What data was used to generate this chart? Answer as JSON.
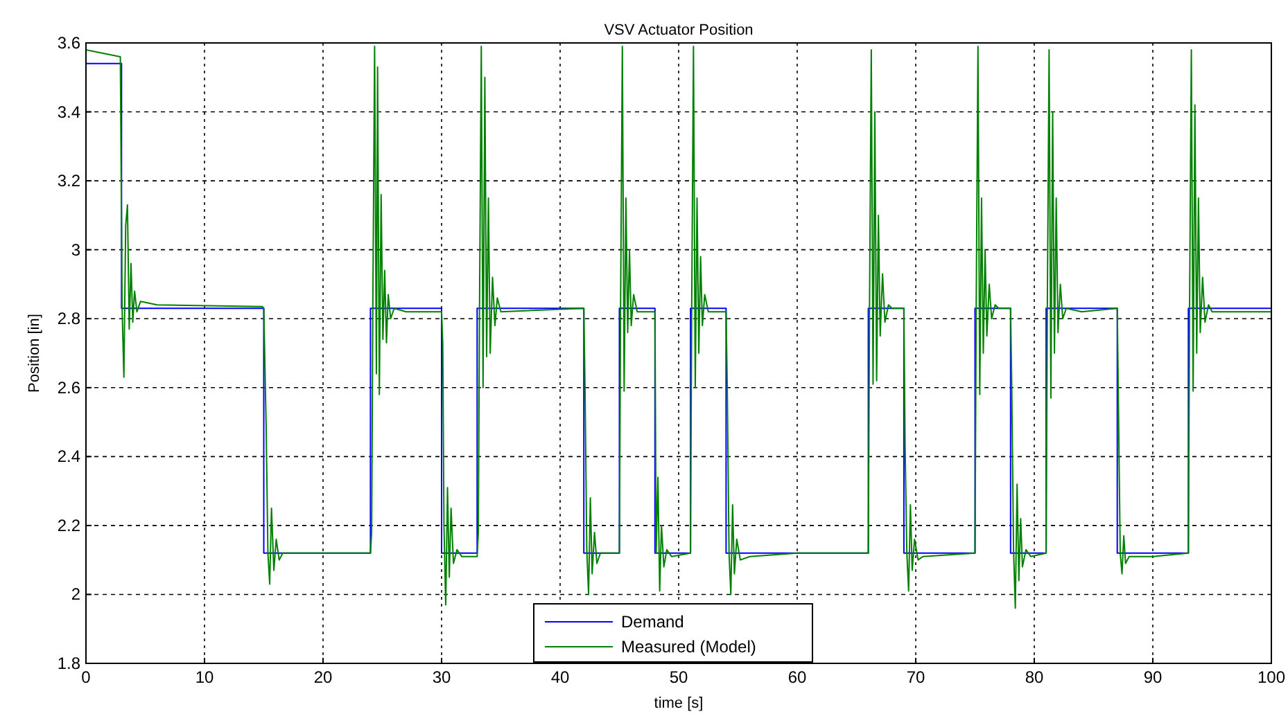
{
  "chart_data": {
    "type": "line",
    "title": "VSV Actuator Position",
    "xlabel": "time [s]",
    "ylabel": "Position [in]",
    "xlim": [
      0,
      100
    ],
    "xticks": [
      0,
      10,
      20,
      30,
      40,
      50,
      60,
      70,
      80,
      90,
      100
    ],
    "ylim": [
      1.8,
      3.6
    ],
    "yticks": [
      1.8,
      2,
      2.2,
      2.4,
      2.6,
      2.8,
      3,
      3.2,
      3.4,
      3.6
    ],
    "grid": true,
    "legend": "bottom",
    "line_style": "solid",
    "marker": "none",
    "series": [
      {
        "name": "Demand",
        "type": "step",
        "color": "#0000ff",
        "x": [
          0,
          3,
          15,
          24,
          30,
          33,
          42,
          45,
          48,
          51,
          54,
          66,
          69,
          75,
          78,
          81,
          87,
          93,
          100
        ],
        "values": [
          3.54,
          2.83,
          2.12,
          2.83,
          2.12,
          2.83,
          2.12,
          2.83,
          2.12,
          2.83,
          2.12,
          2.83,
          2.12,
          2.83,
          2.12,
          2.83,
          2.12,
          2.83,
          2.83
        ]
      },
      {
        "name": "Measured (Model)",
        "type": "line",
        "color": "#008000",
        "x": [
          0,
          2.9,
          3.05,
          3.2,
          3.35,
          3.5,
          3.65,
          3.8,
          3.95,
          4.1,
          4.3,
          4.6,
          6,
          14.9,
          15.0,
          15.2,
          15.35,
          15.5,
          15.65,
          15.85,
          16.05,
          16.3,
          16.6,
          24,
          24.1,
          24.2,
          24.35,
          24.5,
          24.6,
          24.75,
          24.9,
          25.05,
          25.2,
          25.35,
          25.5,
          25.7,
          26,
          27,
          30,
          30.1,
          30.2,
          30.35,
          30.5,
          30.65,
          30.8,
          31,
          31.3,
          31.7,
          33,
          33.1,
          33.2,
          33.35,
          33.5,
          33.65,
          33.8,
          33.95,
          34.1,
          34.3,
          34.5,
          34.7,
          35,
          42,
          42.1,
          42.25,
          42.4,
          42.55,
          42.7,
          42.9,
          43.1,
          43.4,
          45,
          45.1,
          45.25,
          45.4,
          45.55,
          45.7,
          45.85,
          46,
          46.2,
          46.5,
          48,
          48.1,
          48.25,
          48.4,
          48.55,
          48.75,
          49,
          49.4,
          51,
          51.1,
          51.25,
          51.4,
          51.55,
          51.7,
          51.85,
          52,
          52.2,
          52.5,
          54,
          54.1,
          54.25,
          54.4,
          54.55,
          54.7,
          54.9,
          55.2,
          56,
          60,
          66,
          66.1,
          66.25,
          66.4,
          66.55,
          66.7,
          66.85,
          67,
          67.2,
          67.4,
          67.7,
          68,
          69,
          69.1,
          69.25,
          69.4,
          69.55,
          69.7,
          69.9,
          70.2,
          70.6,
          75,
          75.1,
          75.25,
          75.4,
          75.55,
          75.7,
          75.85,
          76,
          76.2,
          76.4,
          76.7,
          77,
          78,
          78.1,
          78.25,
          78.4,
          78.55,
          78.7,
          78.85,
          79,
          79.3,
          79.7,
          81,
          81.1,
          81.25,
          81.4,
          81.55,
          81.7,
          81.85,
          82,
          82.2,
          82.4,
          82.7,
          84,
          87,
          87.1,
          87.25,
          87.4,
          87.55,
          87.7,
          88,
          90,
          93,
          93.1,
          93.25,
          93.4,
          93.55,
          93.7,
          93.85,
          94,
          94.2,
          94.4,
          94.7,
          95,
          100
        ],
        "values": [
          3.58,
          3.56,
          2.83,
          2.63,
          3.07,
          3.13,
          2.77,
          2.96,
          2.79,
          2.88,
          2.82,
          2.85,
          2.84,
          2.835,
          2.83,
          2.49,
          2.12,
          2.03,
          2.25,
          2.07,
          2.16,
          2.1,
          2.12,
          2.12,
          2.18,
          2.83,
          3.59,
          2.64,
          3.53,
          2.58,
          3.16,
          2.74,
          2.94,
          2.73,
          2.87,
          2.8,
          2.83,
          2.82,
          2.82,
          2.73,
          2.2,
          1.97,
          2.31,
          2.05,
          2.25,
          2.09,
          2.13,
          2.11,
          2.11,
          2.18,
          2.83,
          3.59,
          2.6,
          3.5,
          2.69,
          3.15,
          2.7,
          2.92,
          2.78,
          2.86,
          2.82,
          2.83,
          2.6,
          2.13,
          2.0,
          2.28,
          2.06,
          2.18,
          2.09,
          2.12,
          2.12,
          2.83,
          3.59,
          2.59,
          3.15,
          2.76,
          3.0,
          2.78,
          2.87,
          2.82,
          2.82,
          2.12,
          2.34,
          2.01,
          2.2,
          2.08,
          2.13,
          2.11,
          2.12,
          2.83,
          3.59,
          2.6,
          3.15,
          2.7,
          2.98,
          2.78,
          2.87,
          2.82,
          2.82,
          2.6,
          2.12,
          2.0,
          2.26,
          2.06,
          2.16,
          2.1,
          2.11,
          2.12,
          2.12,
          2.83,
          3.58,
          2.61,
          3.4,
          2.62,
          3.1,
          2.75,
          2.93,
          2.79,
          2.84,
          2.83,
          2.83,
          2.43,
          2.12,
          2.01,
          2.26,
          2.07,
          2.16,
          2.1,
          2.11,
          2.12,
          2.83,
          3.59,
          2.58,
          3.15,
          2.7,
          3.0,
          2.75,
          2.9,
          2.8,
          2.84,
          2.83,
          2.83,
          2.6,
          2.13,
          1.96,
          2.32,
          2.04,
          2.22,
          2.08,
          2.13,
          2.11,
          2.12,
          2.83,
          3.58,
          2.57,
          3.4,
          2.7,
          3.15,
          2.76,
          2.9,
          2.8,
          2.83,
          2.82,
          2.83,
          2.55,
          2.12,
          2.06,
          2.17,
          2.09,
          2.11,
          2.11,
          2.12,
          2.83,
          3.58,
          2.59,
          3.42,
          2.7,
          3.15,
          2.76,
          2.92,
          2.79,
          2.84,
          2.82,
          2.82
        ]
      }
    ]
  }
}
